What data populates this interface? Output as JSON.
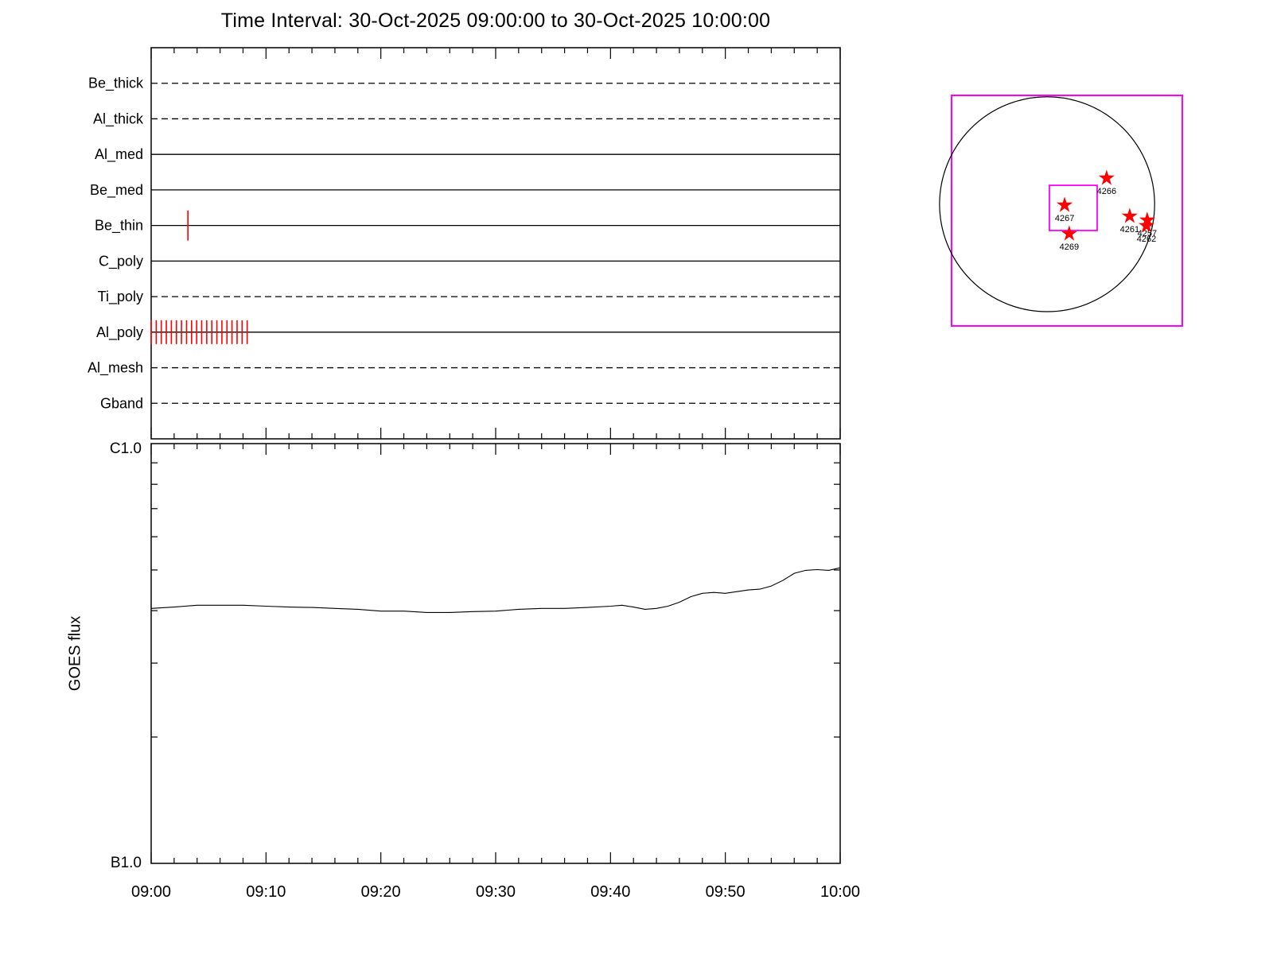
{
  "title": "Time Interval: 30-Oct-2025 09:00:00 to 30-Oct-2025 10:00:00",
  "colors": {
    "event_marker": "#ff0000",
    "fov_box": "#ff00ff",
    "axis": "#000000",
    "background": "#ffffff"
  },
  "chart_data": [
    {
      "id": "filter_timeline",
      "type": "timeline",
      "x_range_minutes": [
        0,
        60
      ],
      "x_minor_tick_minutes": 2,
      "x_major_tick_minutes": 10,
      "rows": [
        {
          "label": "Be_thick",
          "line": "dashed",
          "event_times_min": []
        },
        {
          "label": "Al_thick",
          "line": "dashed",
          "event_times_min": []
        },
        {
          "label": "Al_med",
          "line": "solid",
          "event_times_min": []
        },
        {
          "label": "Be_med",
          "line": "solid",
          "event_times_min": []
        },
        {
          "label": "Be_thin",
          "line": "solid",
          "event_times_min": [
            3.2
          ]
        },
        {
          "label": "C_poly",
          "line": "solid",
          "event_times_min": []
        },
        {
          "label": "Ti_poly",
          "line": "dashed",
          "event_times_min": []
        },
        {
          "label": "Al_poly",
          "line": "solid",
          "event_times_min": [
            0,
            0.44,
            0.88,
            1.32,
            1.76,
            2.2,
            2.64,
            3.08,
            3.52,
            3.96,
            4.4,
            4.84,
            5.28,
            5.72,
            6.16,
            6.6,
            7.04,
            7.48,
            7.92,
            8.36
          ]
        },
        {
          "label": "Al_mesh",
          "line": "dashed",
          "event_times_min": []
        },
        {
          "label": "Gband",
          "line": "dashed",
          "event_times_min": []
        }
      ]
    },
    {
      "id": "goes_flux",
      "type": "line",
      "title": "",
      "ylabel": "GOES flux",
      "yaxis": {
        "scale": "log",
        "top_label": "C1.0",
        "bottom_label": "B1.0",
        "range_watts_m2": [
          1e-07,
          1e-06
        ]
      },
      "xticks": [
        {
          "minute": 0,
          "label": "09:00"
        },
        {
          "minute": 10,
          "label": "09:10"
        },
        {
          "minute": 20,
          "label": "09:20"
        },
        {
          "minute": 30,
          "label": "09:30"
        },
        {
          "minute": 40,
          "label": "09:40"
        },
        {
          "minute": 50,
          "label": "09:50"
        },
        {
          "minute": 60,
          "label": "10:00"
        }
      ],
      "series": [
        {
          "name": "GOES flux",
          "x_minutes": [
            0,
            2,
            4,
            6,
            8,
            10,
            12,
            14,
            16,
            18,
            20,
            22,
            24,
            26,
            28,
            30,
            32,
            34,
            36,
            38,
            40,
            41,
            42,
            43,
            44,
            45,
            46,
            47,
            48,
            49,
            50,
            51,
            52,
            53,
            54,
            55,
            56,
            57,
            58,
            59,
            60
          ],
          "flux_b_units": [
            4.05,
            4.08,
            4.12,
            4.12,
            4.12,
            4.1,
            4.08,
            4.07,
            4.05,
            4.03,
            3.99,
            3.99,
            3.96,
            3.96,
            3.98,
            3.99,
            4.03,
            4.05,
            4.05,
            4.07,
            4.1,
            4.12,
            4.08,
            4.03,
            4.05,
            4.1,
            4.19,
            4.32,
            4.4,
            4.42,
            4.4,
            4.44,
            4.48,
            4.5,
            4.58,
            4.72,
            4.91,
            4.99,
            5.01,
            4.99,
            5.06
          ]
        }
      ]
    },
    {
      "id": "full_disk_locator",
      "type": "scatter",
      "solar_disk": {
        "fx": 0.414,
        "fy": 0.472,
        "fr": 0.466
      },
      "pointing_box": {
        "fx": 0.424,
        "fy": 0.39,
        "fw": 0.207,
        "fh": 0.196
      },
      "active_regions": [
        {
          "label": "4266",
          "fx": 0.672,
          "fy": 0.359
        },
        {
          "label": "4267",
          "fx": 0.49,
          "fy": 0.476
        },
        {
          "label": "4261",
          "fx": 0.772,
          "fy": 0.524
        },
        {
          "label": "4257",
          "fx": 0.848,
          "fy": 0.541
        },
        {
          "label": "4262",
          "fx": 0.845,
          "fy": 0.565
        },
        {
          "label": "4269",
          "fx": 0.51,
          "fy": 0.6
        }
      ]
    }
  ]
}
